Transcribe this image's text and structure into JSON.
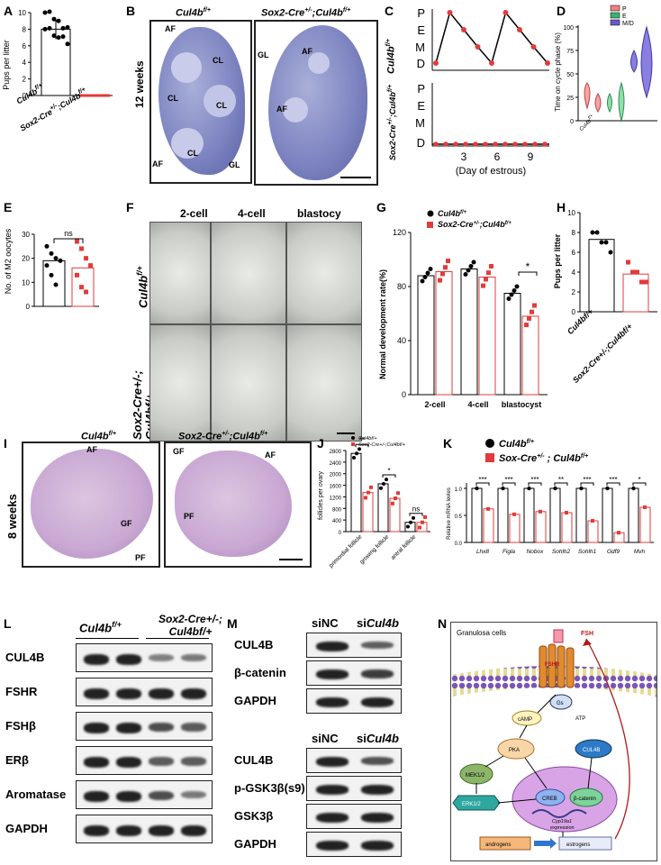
{
  "panels": {
    "A": {
      "letter": "A",
      "ylabel": "Pups per litter",
      "yticks": [
        "0",
        "2",
        "4",
        "6",
        "8",
        "10"
      ],
      "categories": [
        "Cul4b f/+",
        "Sox2-Cre+/-;Cul4b f/+"
      ],
      "cat1_main": "Cul4b",
      "cat1_sup": "f/+",
      "cat2_main": "Sox2-Cre",
      "cat2_sup": "+/-",
      "cat2_tail": ";Cul4b",
      "cat2_sup2": "f/+"
    },
    "B": {
      "letter": "B",
      "left_title_main": "Cul4b",
      "left_title_sup": "f/+",
      "right_title_main": "Sox2-Cre",
      "right_title_sup": "+/-",
      "right_title_tail": ";Cul4b",
      "right_title_sup2": "f/+",
      "side_label": "12 weeks",
      "labels_left": [
        "AF",
        "CL",
        "CL",
        "CL",
        "CL",
        "AF",
        "GL"
      ],
      "labels_right": [
        "GL",
        "AF",
        "AF"
      ]
    },
    "C": {
      "letter": "C",
      "yticks": [
        "P",
        "E",
        "M",
        "D"
      ],
      "xticks": [
        "3",
        "6",
        "9"
      ],
      "xlabel": "(Day of estrous)",
      "top_label_main": "Cul4b",
      "top_label_sup": "f/+",
      "bottom_label_main": "Sox2-Cre",
      "bottom_label_sup": "+/-",
      "bottom_label_tail": ";Cul4b",
      "bottom_label_sup2": "f/+"
    },
    "D": {
      "letter": "D",
      "ylabel": "Time on cycle phase (%)",
      "yticks": [
        "0",
        "25",
        "50",
        "75",
        "100"
      ],
      "legend": [
        "P",
        "E",
        "M/D"
      ],
      "legend_colors": [
        "#f08080",
        "#3cb371",
        "#6a5acd"
      ]
    },
    "E": {
      "letter": "E",
      "ylabel": "No. of M2 oocytes",
      "yticks": [
        "0",
        "10",
        "20",
        "30"
      ],
      "ns": "ns"
    },
    "F": {
      "letter": "F",
      "cols": [
        "2-cell",
        "4-cell",
        "blastocy"
      ],
      "row1_main": "Cul4b",
      "row1_sup": "f/+",
      "row2_line1": "Sox2-Cre+/-;",
      "row2_line2": "Cul4bf/+"
    },
    "G": {
      "letter": "G",
      "ylabel": "Normal development rate(%)",
      "yticks": [
        "0",
        "40",
        "80",
        "120"
      ],
      "categories": [
        "2-cell",
        "4-cell",
        "blastocyst"
      ],
      "legend1_main": "Cul4b",
      "legend1_sup": "f/+",
      "legend2_main": "Sox2-Cre",
      "legend2_sup": "+/-",
      "legend2_tail": ";Cul4b",
      "legend2_sup2": "f/+",
      "star": "*"
    },
    "H": {
      "letter": "H",
      "ylabel": "Pups per litter",
      "yticks": [
        "0",
        "2",
        "4",
        "6",
        "8",
        "10"
      ],
      "cat1": "Cul4bf/+",
      "cat2": "Sox2-Cre+/-;Cul4bf/+"
    },
    "I": {
      "letter": "I",
      "left_title_main": "Cul4b",
      "left_title_sup": "f/+",
      "right_title_main": "Sox2-Cre",
      "right_title_sup": "+/-",
      "right_title_tail": ";Cul4b",
      "right_title_sup2": "f/+",
      "side_label": "8 weeks",
      "labels_left": [
        "AF",
        "GF",
        "PF"
      ],
      "labels_right": [
        "GF",
        "AF",
        "PF"
      ]
    },
    "J": {
      "letter": "J",
      "ylabel": "follicles per ovary",
      "yticks": [
        "0",
        "400",
        "800",
        "1200",
        "1600",
        "2000",
        "2400",
        "2800"
      ],
      "categories": [
        "primordial follicle",
        "growing follicle",
        "antral follicle"
      ],
      "legend1": "Cul4bf/+",
      "legend2": "Sox2-Cre+/-;Cul4bf/+",
      "sig": [
        "**",
        "*",
        "ns"
      ]
    },
    "K": {
      "letter": "K",
      "ylabel": "Relative mRNA levles",
      "yticks": [
        "0.0",
        "0.5",
        "1.0"
      ],
      "genes": [
        "Lhx8",
        "Figla",
        "Nobox",
        "Sohlh2",
        "Sohlh1",
        "Gdf9",
        "Mvh"
      ],
      "sig": [
        "***",
        "***",
        "***",
        "**",
        "***",
        "***",
        "*"
      ],
      "legend1_main": "Cul4b",
      "legend1_sup": "f/+",
      "legend2_main": "Sox-Cre",
      "legend2_sup": "+/-",
      "legend2_tail": " ; Cul4b",
      "legend2_sup2": "f/+"
    },
    "L": {
      "letter": "L",
      "group1_main": "Cul4b",
      "group1_sup": "f/+",
      "group2_line1": "Sox2-Cre+/-;",
      "group2_line2": "Cul4bf/+",
      "rows": [
        "CUL4B",
        "FSHR",
        "FSHβ",
        "ERβ",
        "Aromatase",
        "GAPDH"
      ]
    },
    "M": {
      "letter": "M",
      "header1": "siNC",
      "header2_pre": "si",
      "header2_gene": "Cul4b",
      "rows_top": [
        "CUL4B",
        "β-catenin",
        "GAPDH"
      ],
      "rows_bottom": [
        "CUL4B",
        "p-GSK3β(s9)",
        "GSK3β",
        "GAPDH"
      ]
    },
    "N": {
      "letter": "N",
      "cell": "Granulosa cells",
      "fsh": "FSH",
      "fshr": "FSHR",
      "gs": "Gs",
      "atp": "ATP",
      "camp": "cAMP",
      "pka": "PKA",
      "cul4b": "CUL4B",
      "mek": "MEK1/2",
      "erk": "ERK1/2",
      "creb": "CREB",
      "bcat": "β-catenin",
      "cyp": "Cyp19a1",
      "expr": "expression",
      "andro": "androgens",
      "estro": "estrogens"
    }
  },
  "chart_data": [
    {
      "panel": "A",
      "type": "bar",
      "categories": [
        "Cul4b f/+",
        "Sox2-Cre+/-;Cul4b f/+"
      ],
      "values": [
        8.0,
        0.0
      ],
      "ylabel": "Pups per litter",
      "ylim": [
        0,
        10
      ]
    },
    {
      "panel": "E",
      "type": "bar",
      "categories": [
        "Cul4b f/+",
        "Sox2-Cre+/-;Cul4b f/+"
      ],
      "values": [
        19,
        16
      ],
      "ylabel": "No. of M2 oocytes",
      "ylim": [
        0,
        30
      ]
    },
    {
      "panel": "G",
      "type": "bar",
      "categories": [
        "2-cell",
        "4-cell",
        "blastocyst"
      ],
      "series": [
        {
          "name": "Cul4b f/+",
          "values": [
            88,
            93,
            75
          ]
        },
        {
          "name": "Sox2-Cre+/-;Cul4b f/+",
          "values": [
            91,
            87,
            58
          ]
        }
      ],
      "ylabel": "Normal development rate(%)",
      "ylim": [
        0,
        120
      ]
    },
    {
      "panel": "H",
      "type": "bar",
      "categories": [
        "Cul4bf/+",
        "Sox2-Cre+/-;Cul4bf/+"
      ],
      "values": [
        7.3,
        3.8
      ],
      "ylabel": "Pups per litter",
      "ylim": [
        0,
        10
      ]
    },
    {
      "panel": "J",
      "type": "bar",
      "categories": [
        "primordial follicle",
        "growing follicle",
        "antral follicle"
      ],
      "series": [
        {
          "name": "Cul4bf/+",
          "values": [
            2700,
            1650,
            320
          ]
        },
        {
          "name": "Sox2-Cre+/-;Cul4bf/+",
          "values": [
            1350,
            1150,
            320
          ]
        }
      ],
      "ylabel": "follicles per ovary",
      "ylim": [
        0,
        2800
      ]
    },
    {
      "panel": "K",
      "type": "bar",
      "categories": [
        "Lhx8",
        "Figla",
        "Nobox",
        "Sohlh2",
        "Sohlh1",
        "Gdf9",
        "Mvh"
      ],
      "series": [
        {
          "name": "Cul4b f/+",
          "values": [
            1.0,
            1.0,
            1.0,
            1.0,
            1.0,
            1.0,
            1.0
          ]
        },
        {
          "name": "Sox-Cre+/-; Cul4b f/+",
          "values": [
            0.62,
            0.52,
            0.57,
            0.55,
            0.4,
            0.18,
            0.65
          ]
        }
      ],
      "ylabel": "Relative mRNA levles",
      "ylim": [
        0,
        1.1
      ]
    }
  ]
}
